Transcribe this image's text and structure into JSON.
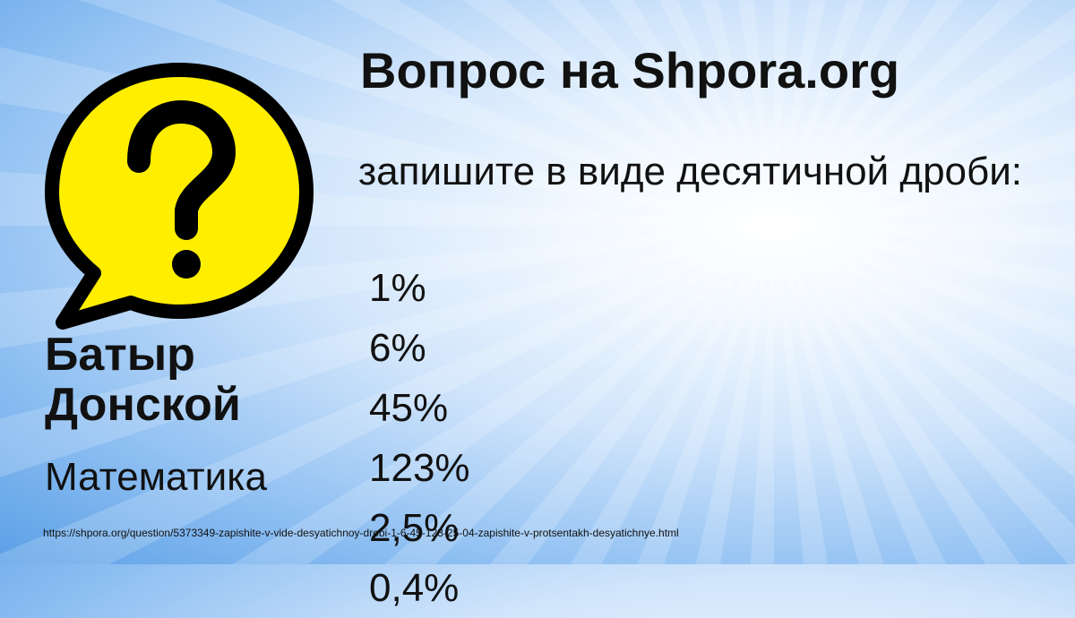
{
  "site_title": "Вопрос на Shpora.org",
  "question": {
    "text": "запишите в виде десятичной дроби:",
    "values": [
      "1%",
      "6%",
      "45%",
      "123%",
      "2,5%",
      "0,4%"
    ]
  },
  "author": "Батыр Донской",
  "subject": "Математика",
  "url": "https://shpora.org/question/5373349-zapishite-v-vide-desyatichnoy-drobi-1-6-45-123-25-04-zapishite-v-protsentakh-desyatichnye.html",
  "colors": {
    "bubble": "#ffee00",
    "outline": "#000000"
  },
  "icon": "question-speech-bubble-icon"
}
